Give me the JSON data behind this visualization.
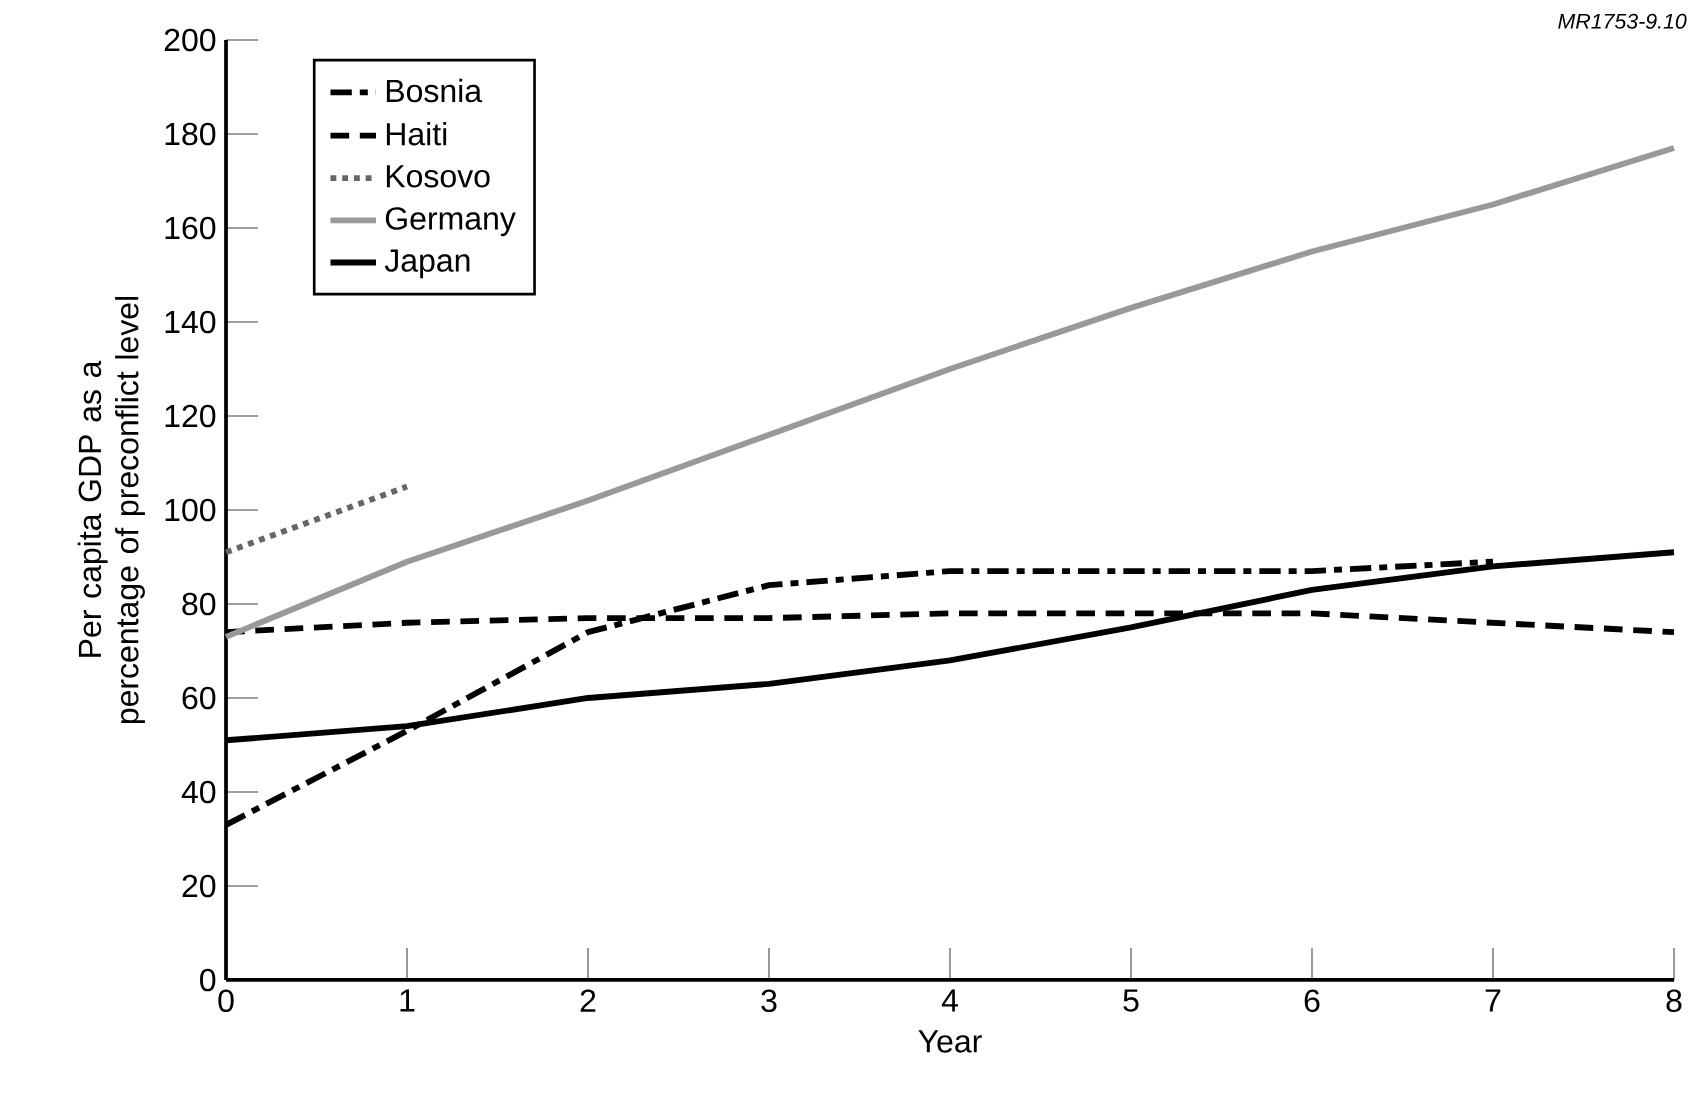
{
  "chart_data": {
    "type": "line",
    "xlabel": "Year",
    "ylabel": "Per capita GDP as a percentage of preconflict level",
    "xlim": [
      0,
      8
    ],
    "ylim": [
      0,
      200
    ],
    "xticks": [
      0,
      1,
      2,
      3,
      4,
      5,
      6,
      7,
      8
    ],
    "yticks": [
      0,
      20,
      40,
      60,
      80,
      100,
      120,
      140,
      160,
      180,
      200
    ],
    "grid": false,
    "legend": "top left",
    "marker": "none",
    "annotations": [
      "MR1753-9.10"
    ],
    "series": [
      {
        "name": "Bosnia",
        "color": "#000000",
        "line_style": "dashdot",
        "x": [
          0,
          1,
          2,
          3,
          4,
          5,
          6,
          7
        ],
        "values": [
          33,
          53,
          74,
          84,
          87,
          87,
          87,
          89
        ]
      },
      {
        "name": "Haiti",
        "color": "#000000",
        "line_style": "dashed",
        "x": [
          0,
          1,
          2,
          3,
          4,
          5,
          6,
          7,
          8
        ],
        "values": [
          74,
          76,
          77,
          77,
          78,
          78,
          78,
          76,
          74
        ]
      },
      {
        "name": "Kosovo",
        "color": "#666666",
        "line_style": "dotted",
        "x": [
          0,
          1
        ],
        "values": [
          91,
          105
        ]
      },
      {
        "name": "Germany",
        "color": "#999999",
        "line_style": "solid",
        "x": [
          0,
          1,
          2,
          3,
          4,
          5,
          6,
          7,
          8
        ],
        "values": [
          73,
          89,
          102,
          116,
          130,
          143,
          155,
          165,
          177
        ]
      },
      {
        "name": "Japan",
        "color": "#000000",
        "line_style": "solid",
        "x": [
          0,
          1,
          2,
          3,
          4,
          5,
          6,
          7,
          8
        ],
        "values": [
          51,
          54,
          60,
          63,
          68,
          75,
          83,
          88,
          91
        ]
      }
    ]
  }
}
